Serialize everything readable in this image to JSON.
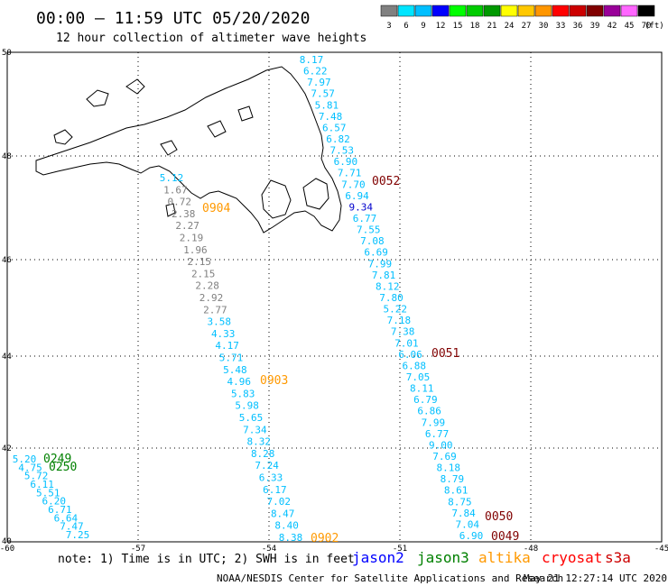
{
  "header": {
    "title": "00:00 – 11:59 UTC 05/20/2020",
    "subtitle": "12 hour collection of altimeter wave heights"
  },
  "scale": {
    "unit": "(ft)",
    "bins": [
      {
        "label": "3",
        "color": "#808080"
      },
      {
        "label": "6",
        "color": "#00e5ff"
      },
      {
        "label": "9",
        "color": "#00bfff"
      },
      {
        "label": "12",
        "color": "#0000ff"
      },
      {
        "label": "15",
        "color": "#00ff00"
      },
      {
        "label": "18",
        "color": "#00cc00"
      },
      {
        "label": "21",
        "color": "#009900"
      },
      {
        "label": "24",
        "color": "#ffff00"
      },
      {
        "label": "27",
        "color": "#ffc800"
      },
      {
        "label": "30",
        "color": "#ff9600"
      },
      {
        "label": "33",
        "color": "#ff0000"
      },
      {
        "label": "36",
        "color": "#cc0000"
      },
      {
        "label": "39",
        "color": "#800000"
      },
      {
        "label": "42",
        "color": "#990099"
      },
      {
        "label": "45",
        "color": "#ff66ff"
      },
      {
        "label": "70",
        "color": "#000000"
      }
    ]
  },
  "axes": {
    "lon_ticks": [
      "-60",
      "-57",
      "-54",
      "-51",
      "-48",
      "-45"
    ],
    "lat_ticks": [
      "50",
      "48",
      "46",
      "44",
      "42",
      "40"
    ]
  },
  "colors": {
    "grey": "#808080",
    "cyan": "#00bfff",
    "blue": "#0000cc",
    "orange": "#ff9900",
    "darkred": "#800000",
    "green": "#008000"
  },
  "track_a": {
    "labels": [
      "8.17",
      "6.22",
      "7.97",
      "7.57",
      "5.81",
      "7.48",
      "6.57",
      "6.82",
      "7.53",
      "6.90",
      "7.71",
      "7.70",
      "6.94",
      "9.34",
      "6.77",
      "7.55",
      "7.08",
      "6.69",
      "7.99",
      "7.81",
      "8.12",
      "7.80",
      "5.22",
      "7.18",
      "7.38",
      "7.01",
      "6.06",
      "6.88",
      "7.05",
      "8.11",
      "6.79",
      "6.86",
      "7.99",
      "6.77",
      "9.00",
      "7.69",
      "8.18",
      "8.79",
      "8.61",
      "8.75",
      "7.84",
      "7.04",
      "6.90"
    ],
    "colors": [
      "cyan",
      "cyan",
      "cyan",
      "cyan",
      "cyan",
      "cyan",
      "cyan",
      "cyan",
      "cyan",
      "cyan",
      "cyan",
      "cyan",
      "cyan",
      "blue",
      "cyan",
      "cyan",
      "cyan",
      "cyan",
      "cyan",
      "cyan",
      "cyan",
      "cyan",
      "cyan",
      "cyan",
      "cyan",
      "cyan",
      "cyan",
      "cyan",
      "cyan",
      "cyan",
      "cyan",
      "cyan",
      "cyan",
      "cyan",
      "cyan",
      "cyan",
      "cyan",
      "cyan",
      "cyan",
      "cyan",
      "cyan",
      "cyan",
      "cyan"
    ]
  },
  "track_b": {
    "labels": [
      "5.12",
      "1.67",
      "0.72",
      "2.38",
      "2.27",
      "2.19",
      "1.96",
      "2.15",
      "2.15",
      "2.28",
      "2.92",
      "2.77",
      "3.58",
      "4.33",
      "4.17",
      "5.71",
      "5.48",
      "4.96",
      "5.83",
      "5.98",
      "5.65",
      "7.34",
      "8.32",
      "8.28",
      "7.24",
      "6.33",
      "6.17",
      "7.02",
      "8.47",
      "8.40",
      "8.38"
    ],
    "colors": [
      "cyan",
      "grey",
      "grey",
      "grey",
      "grey",
      "grey",
      "grey",
      "grey",
      "grey",
      "grey",
      "grey",
      "grey",
      "cyan",
      "cyan",
      "cyan",
      "cyan",
      "cyan",
      "cyan",
      "cyan",
      "cyan",
      "cyan",
      "cyan",
      "cyan",
      "cyan",
      "cyan",
      "cyan",
      "cyan",
      "cyan",
      "cyan",
      "cyan",
      "cyan"
    ]
  },
  "track_c": {
    "labels": [
      "5.20",
      "4.75",
      "5.72",
      "6.11",
      "5.51",
      "6.20",
      "6.71",
      "6.64",
      "7.47",
      "7.25"
    ]
  },
  "timestamps": [
    {
      "text": "0052",
      "color": "darkred"
    },
    {
      "text": "0904",
      "color": "orange"
    },
    {
      "text": "0903",
      "color": "orange"
    },
    {
      "text": "0051",
      "color": "darkred"
    },
    {
      "text": "0249",
      "color": "green"
    },
    {
      "text": "0250",
      "color": "green"
    },
    {
      "text": "0050",
      "color": "darkred"
    },
    {
      "text": "0902",
      "color": "orange"
    },
    {
      "text": "0049",
      "color": "darkred"
    }
  ],
  "footer": {
    "note": "note: 1) Time is in UTC; 2) SWH is in feet",
    "satellites": [
      {
        "name": "jason2",
        "color": "#0000ff"
      },
      {
        "name": "jason3",
        "color": "#008000"
      },
      {
        "name": "altika",
        "color": "#ff9900"
      },
      {
        "name": "cryosat",
        "color": "#ff0000"
      },
      {
        "name": "s3a",
        "color": "#cc0000"
      }
    ],
    "credit": "NOAA/NESDIS Center for Satellite Applications and Research",
    "generated": "May 21 12:27:14 UTC 2020"
  }
}
